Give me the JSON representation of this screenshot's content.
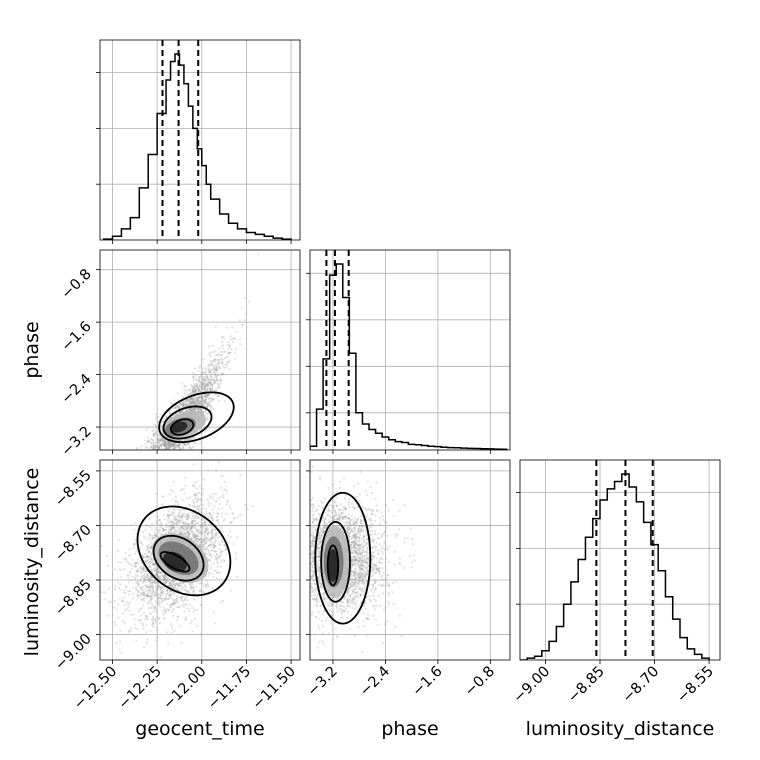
{
  "chart_data": {
    "type": "corner",
    "parameters": [
      "geocent_time",
      "phase",
      "luminosity_distance"
    ],
    "axes": {
      "geocent_time": {
        "range": [
          -12.57,
          -11.45
        ],
        "ticks": [
          -12.5,
          -12.25,
          -12.0,
          -11.75,
          -11.5
        ],
        "tick_labels": [
          "−12.50",
          "−12.25",
          "−12.00",
          "−11.75",
          "−11.50"
        ],
        "label": "geocent_time"
      },
      "phase": {
        "range": [
          -3.55,
          -0.5
        ],
        "ticks": [
          -3.2,
          -2.4,
          -1.6,
          -0.8
        ],
        "tick_labels": [
          "−3.2",
          "−2.4",
          "−1.6",
          "−0.8"
        ],
        "label": "phase"
      },
      "luminosity_distance": {
        "range": [
          -9.07,
          -8.52
        ],
        "ticks": [
          -9.0,
          -8.85,
          -8.7,
          -8.55
        ],
        "tick_labels": [
          "−9.00",
          "−8.85",
          "−8.70",
          "−8.55"
        ],
        "label": "luminosity_distance"
      }
    },
    "histograms": [
      {
        "parameter": "geocent_time",
        "bin_edges": [
          -12.55,
          -12.5,
          -12.45,
          -12.4,
          -12.35,
          -12.3,
          -12.25,
          -12.2,
          -12.175,
          -12.15,
          -12.125,
          -12.1,
          -12.075,
          -12.05,
          -12.025,
          -12.0,
          -11.975,
          -11.95,
          -11.9,
          -11.85,
          -11.8,
          -11.75,
          -11.7,
          -11.65,
          -11.6,
          -11.55,
          -11.5
        ],
        "counts": [
          0.005,
          0.02,
          0.06,
          0.12,
          0.28,
          0.46,
          0.68,
          0.86,
          0.96,
          1.0,
          0.94,
          0.84,
          0.72,
          0.6,
          0.49,
          0.4,
          0.3,
          0.22,
          0.14,
          0.09,
          0.06,
          0.04,
          0.03,
          0.02,
          0.01,
          0.005
        ],
        "quantiles": [
          -12.22,
          -12.13,
          -12.02
        ],
        "grid_y": [
          0.3,
          0.6,
          0.9
        ]
      },
      {
        "parameter": "phase",
        "bin_edges": [
          -3.55,
          -3.45,
          -3.35,
          -3.25,
          -3.15,
          -3.05,
          -2.95,
          -2.85,
          -2.75,
          -2.65,
          -2.55,
          -2.45,
          -2.35,
          -2.25,
          -2.15,
          -2.05,
          -1.95,
          -1.85,
          -1.75,
          -1.65,
          -1.55,
          -1.45,
          -1.35,
          -1.25,
          -1.15,
          -1.05,
          -0.95,
          -0.85,
          -0.75,
          -0.65,
          -0.55
        ],
        "counts": [
          0.02,
          0.22,
          0.49,
          0.94,
          1.0,
          0.82,
          0.52,
          0.2,
          0.14,
          0.11,
          0.09,
          0.07,
          0.055,
          0.045,
          0.04,
          0.03,
          0.028,
          0.024,
          0.02,
          0.018,
          0.015,
          0.013,
          0.012,
          0.01,
          0.009,
          0.008,
          0.007,
          0.006,
          0.005,
          0.004
        ],
        "quantiles": [
          -3.3,
          -3.17,
          -2.96
        ],
        "grid_y": [
          0.2,
          0.45,
          0.7,
          0.95
        ]
      },
      {
        "parameter": "luminosity_distance",
        "bin_edges": [
          -9.07,
          -9.05,
          -9.03,
          -9.01,
          -8.99,
          -8.97,
          -8.95,
          -8.93,
          -8.91,
          -8.89,
          -8.87,
          -8.85,
          -8.83,
          -8.81,
          -8.79,
          -8.77,
          -8.75,
          -8.73,
          -8.71,
          -8.69,
          -8.67,
          -8.65,
          -8.63,
          -8.61,
          -8.59,
          -8.57,
          -8.55
        ],
        "counts": [
          0.0,
          0.01,
          0.02,
          0.05,
          0.1,
          0.18,
          0.3,
          0.42,
          0.54,
          0.66,
          0.76,
          0.86,
          0.92,
          0.96,
          1.0,
          0.93,
          0.85,
          0.74,
          0.62,
          0.48,
          0.34,
          0.22,
          0.12,
          0.06,
          0.03,
          0.01
        ],
        "quantiles": [
          -8.86,
          -8.78,
          -8.705
        ],
        "grid_y": [
          0.3,
          0.6,
          0.9
        ]
      }
    ],
    "pairs": [
      {
        "x": "geocent_time",
        "y": "phase",
        "scatter": {
          "center": [
            -12.12,
            -3.2
          ],
          "sd": [
            0.12,
            0.22
          ],
          "slope": 3.0,
          "curve": 4.5,
          "n": 2600
        },
        "contours": [
          {
            "center": [
              -12.11,
              -3.2
            ],
            "radii": [
              0.065,
              0.11
            ],
            "angle_deg": 18
          },
          {
            "center": [
              -12.08,
              -3.13
            ],
            "radii": [
              0.14,
              0.22
            ],
            "angle_deg": 20
          },
          {
            "center": [
              -12.03,
              -3.05
            ],
            "radii": [
              0.22,
              0.33
            ],
            "angle_deg": 22
          }
        ],
        "density": [
          {
            "center": [
              -12.13,
              -3.2
            ],
            "radii": [
              0.05,
              0.08
            ],
            "angle_deg": 15
          },
          {
            "center": [
              -12.12,
              -3.2
            ],
            "radii": [
              0.09,
              0.13
            ],
            "angle_deg": 18
          },
          {
            "center": [
              -12.1,
              -3.17
            ],
            "radii": [
              0.13,
              0.18
            ],
            "angle_deg": 20
          }
        ]
      },
      {
        "x": "geocent_time",
        "y": "luminosity_distance",
        "scatter": {
          "center": [
            -12.14,
            -8.79
          ],
          "sd": [
            0.13,
            0.07
          ],
          "slope": 0.28,
          "curve": 0,
          "n": 2600
        },
        "contours": [
          {
            "center": [
              -12.15,
              -8.8
            ],
            "radii": [
              0.035,
              0.045
            ],
            "angle_deg": 60
          },
          {
            "center": [
              -12.13,
              -8.79
            ],
            "radii": [
              0.11,
              0.075
            ],
            "angle_deg": 55
          },
          {
            "center": [
              -12.1,
              -8.77
            ],
            "radii": [
              0.22,
              0.14
            ],
            "angle_deg": 50
          }
        ],
        "density": [
          {
            "center": [
              -12.15,
              -8.8
            ],
            "radii": [
              0.05,
              0.035
            ],
            "angle_deg": 60
          },
          {
            "center": [
              -12.13,
              -8.79
            ],
            "radii": [
              0.08,
              0.06
            ],
            "angle_deg": 58
          },
          {
            "center": [
              -12.12,
              -8.79
            ],
            "radii": [
              0.12,
              0.085
            ],
            "angle_deg": 55
          }
        ]
      },
      {
        "x": "phase",
        "y": "luminosity_distance",
        "scatter": {
          "center": [
            -3.1,
            -8.79
          ],
          "sd": [
            0.35,
            0.075
          ],
          "slope": 0,
          "curve": 0,
          "n": 2600
        },
        "contours": [
          {
            "center": [
              -3.2,
              -8.81
            ],
            "radii": [
              0.08,
              0.055
            ],
            "angle_deg": 0
          },
          {
            "center": [
              -3.16,
              -8.8
            ],
            "radii": [
              0.22,
              0.11
            ],
            "angle_deg": 0
          },
          {
            "center": [
              -3.05,
              -8.79
            ],
            "radii": [
              0.42,
              0.18
            ],
            "angle_deg": 0
          }
        ],
        "density": [
          {
            "center": [
              -3.2,
              -8.81
            ],
            "radii": [
              0.08,
              0.045
            ],
            "angle_deg": 0
          },
          {
            "center": [
              -3.19,
              -8.8
            ],
            "radii": [
              0.15,
              0.07
            ],
            "angle_deg": 0
          },
          {
            "center": [
              -3.17,
              -8.8
            ],
            "radii": [
              0.22,
              0.1
            ],
            "angle_deg": 0
          }
        ]
      }
    ],
    "grid": true
  }
}
